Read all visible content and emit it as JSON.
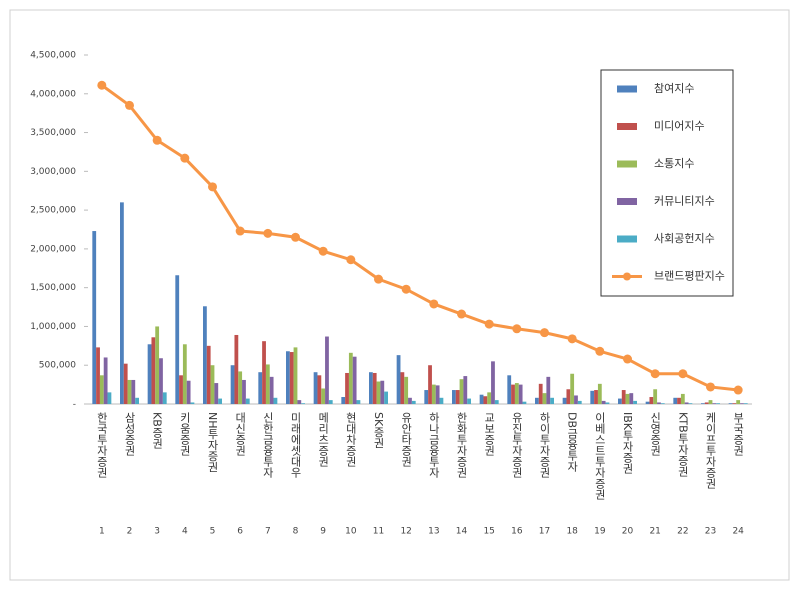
{
  "chart_data": {
    "type": "bar",
    "categories": [
      "한국투자증권",
      "삼성증권",
      "KB증권",
      "키움증권",
      "NH투자증권",
      "대신증권",
      "신한금융투자",
      "미래에셋대우",
      "메리츠증권",
      "현대차증권",
      "SK증권",
      "유안타증권",
      "하나금융투자",
      "한화투자증권",
      "교보증권",
      "유진투자증권",
      "하이투자증권",
      "DB금융투자",
      "이베스트투자증권",
      "IBK투자증권",
      "신영증권",
      "KTB투자증권",
      "케이프투자증권",
      "부국증권"
    ],
    "ranks": [
      1,
      2,
      3,
      4,
      5,
      6,
      7,
      8,
      9,
      10,
      11,
      12,
      13,
      14,
      15,
      16,
      17,
      18,
      19,
      20,
      21,
      22,
      23,
      24
    ],
    "ylim": [
      0,
      4500000
    ],
    "yticks": [
      {
        "value": 0,
        "label": "-"
      },
      {
        "value": 500000,
        "label": "500,000"
      },
      {
        "value": 1000000,
        "label": "1,000,000"
      },
      {
        "value": 1500000,
        "label": "1,500,000"
      },
      {
        "value": 2000000,
        "label": "2,000,000"
      },
      {
        "value": 2500000,
        "label": "2,500,000"
      },
      {
        "value": 3000000,
        "label": "3,000,000"
      },
      {
        "value": 3500000,
        "label": "3,500,000"
      },
      {
        "value": 4000000,
        "label": "4,000,000"
      },
      {
        "value": 4500000,
        "label": "4,500,000"
      }
    ],
    "grid": false,
    "legend_position": "right",
    "series": [
      {
        "name": "참여지수",
        "type": "bar",
        "color": "#4f81bd",
        "values": [
          2230000,
          2600000,
          770000,
          1660000,
          1260000,
          500000,
          410000,
          680000,
          410000,
          90000,
          410000,
          630000,
          180000,
          180000,
          120000,
          370000,
          80000,
          80000,
          170000,
          70000,
          30000,
          80000,
          10000,
          10000
        ]
      },
      {
        "name": "미디어지수",
        "type": "bar",
        "color": "#c0504d",
        "values": [
          730000,
          520000,
          860000,
          370000,
          750000,
          890000,
          810000,
          670000,
          370000,
          400000,
          400000,
          410000,
          500000,
          180000,
          100000,
          250000,
          260000,
          190000,
          180000,
          180000,
          90000,
          80000,
          20000,
          10000
        ]
      },
      {
        "name": "소통지수",
        "type": "bar",
        "color": "#9bbb59",
        "values": [
          370000,
          310000,
          1000000,
          770000,
          500000,
          420000,
          510000,
          730000,
          200000,
          660000,
          290000,
          350000,
          250000,
          320000,
          150000,
          270000,
          140000,
          390000,
          260000,
          130000,
          190000,
          130000,
          50000,
          50000
        ]
      },
      {
        "name": "커뮤니티지수",
        "type": "bar",
        "color": "#8064a2",
        "values": [
          600000,
          310000,
          590000,
          300000,
          270000,
          310000,
          350000,
          50000,
          870000,
          610000,
          300000,
          80000,
          240000,
          360000,
          550000,
          250000,
          350000,
          110000,
          40000,
          140000,
          20000,
          20000,
          10000,
          10000
        ]
      },
      {
        "name": "사회공헌지수",
        "type": "bar",
        "color": "#4bacc6",
        "values": [
          150000,
          80000,
          150000,
          20000,
          70000,
          70000,
          80000,
          10000,
          50000,
          50000,
          160000,
          40000,
          80000,
          70000,
          50000,
          30000,
          80000,
          40000,
          20000,
          40000,
          10000,
          10000,
          10000,
          10000
        ]
      },
      {
        "name": "브랜드평판지수",
        "type": "line",
        "color": "#f79646",
        "values": [
          4110000,
          3850000,
          3400000,
          3170000,
          2800000,
          2230000,
          2200000,
          2150000,
          1970000,
          1860000,
          1610000,
          1480000,
          1290000,
          1160000,
          1030000,
          970000,
          920000,
          840000,
          680000,
          580000,
          390000,
          390000,
          220000,
          180000
        ]
      }
    ]
  }
}
